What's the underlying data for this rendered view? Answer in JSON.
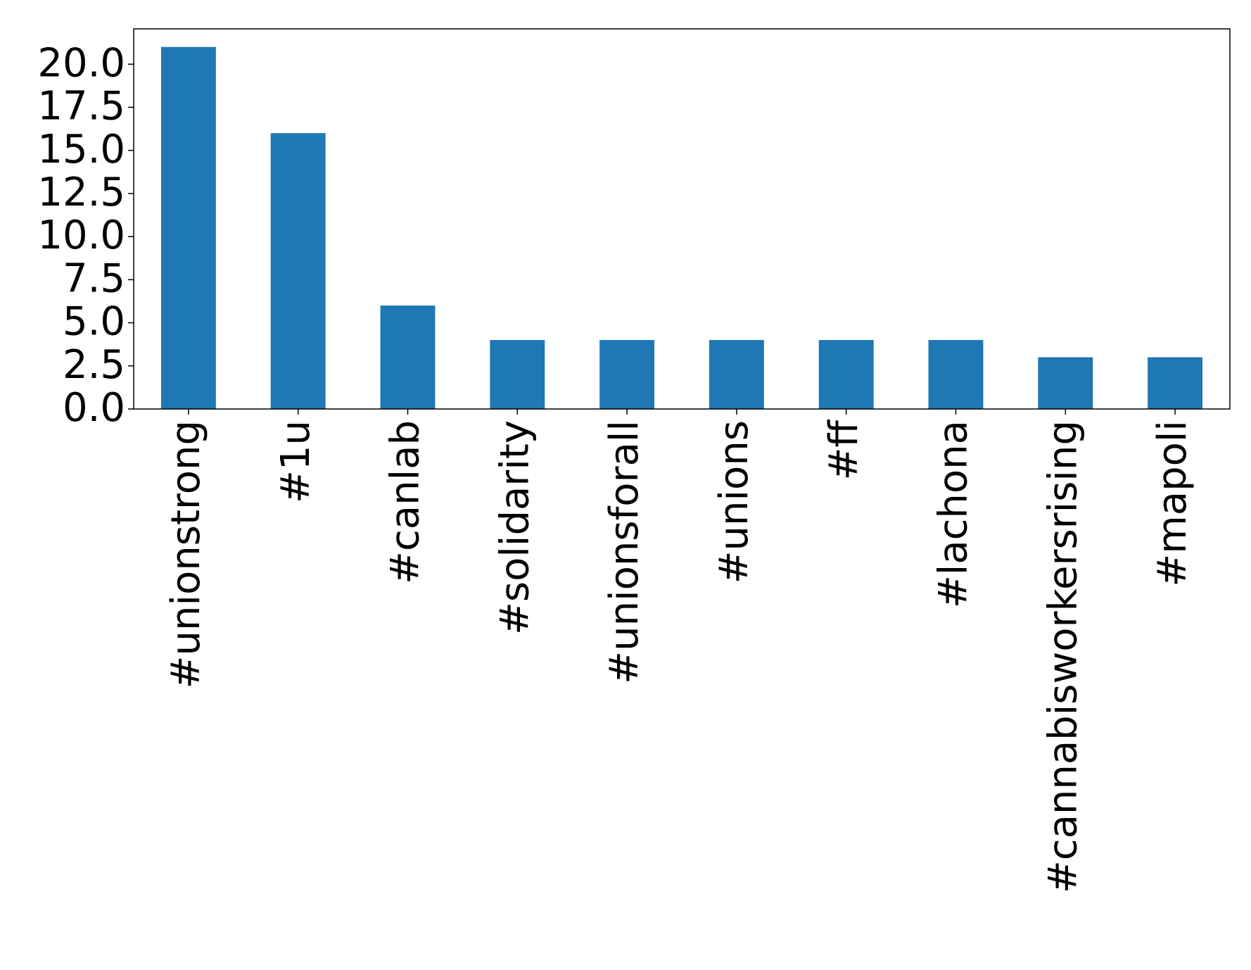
{
  "chart_data": {
    "type": "bar",
    "categories": [
      "#unionstrong",
      "#1u",
      "#canlab",
      "#solidarity",
      "#unionsforall",
      "#unions",
      "#ff",
      "#lachona",
      "#cannabisworkersrising",
      "#mapoli"
    ],
    "values": [
      21,
      16,
      6,
      4,
      4,
      4,
      4,
      4,
      3,
      3
    ],
    "color": "#1f77b4",
    "ylim": [
      0,
      22.05
    ],
    "yticks": [
      {
        "value": 0,
        "label": "0.0"
      },
      {
        "value": 2.5,
        "label": "2.5"
      },
      {
        "value": 5,
        "label": "5.0"
      },
      {
        "value": 7.5,
        "label": "7.5"
      },
      {
        "value": 10,
        "label": "10.0"
      },
      {
        "value": 12.5,
        "label": "12.5"
      },
      {
        "value": 15,
        "label": "15.0"
      },
      {
        "value": 17.5,
        "label": "17.5"
      },
      {
        "value": 20,
        "label": "20.0"
      }
    ],
    "grid": false
  }
}
